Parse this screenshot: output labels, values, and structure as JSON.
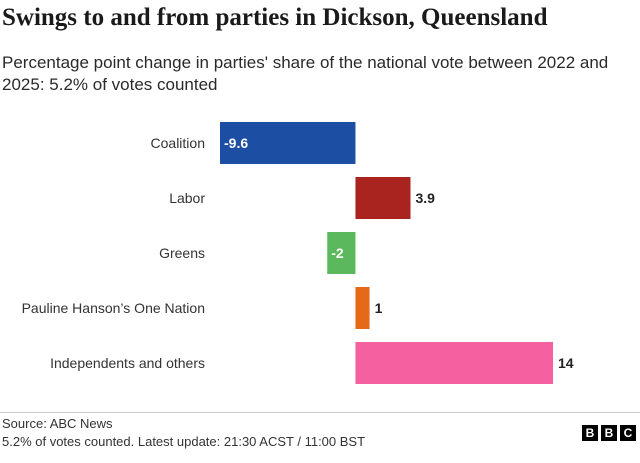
{
  "header": {
    "title": "Swings to and from parties in Dickson, Queensland",
    "subtitle": "Percentage point change in parties' share of the national vote between 2022 and 2025: 5.2% of votes counted"
  },
  "chart_data": {
    "type": "bar",
    "orientation": "horizontal",
    "categories": [
      "Coalition",
      "Labor",
      "Greens",
      "Pauline Hanson’s One Nation",
      "Independents and others"
    ],
    "values": [
      -9.6,
      3.9,
      -2,
      1,
      14
    ],
    "value_labels": [
      "-9.6",
      "3.9",
      "-2",
      "1",
      "14"
    ],
    "colors": [
      "#1c4ea3",
      "#a9231f",
      "#5cb85c",
      "#e46a17",
      "#f560a0"
    ],
    "xlim": [
      -9.6,
      14
    ],
    "grid": false,
    "legend": "none"
  },
  "footer": {
    "source": "Source: ABC News",
    "note": "5.2% of votes counted. Latest update: 21:30 ACST / 11:00 BST",
    "logo_letters": [
      "B",
      "B",
      "C"
    ]
  }
}
